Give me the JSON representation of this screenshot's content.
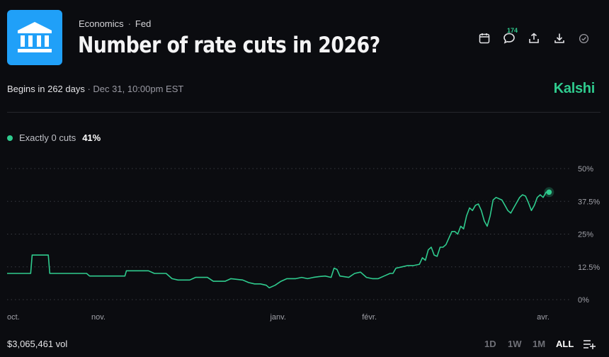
{
  "header": {
    "category": "Economics",
    "subcategory": "Fed",
    "title": "Number of rate cuts in 2026?",
    "comment_count": "174"
  },
  "meta": {
    "begins": "Begins in 262 days",
    "separator": " · ",
    "date": "Dec 31, 10:00pm EST"
  },
  "brand": "Kalshi",
  "legend": {
    "label": "Exactly 0 cuts",
    "value": "41%",
    "color": "#2fcb8e"
  },
  "footer": {
    "volume": "$3,065,461 vol",
    "ranges": [
      "1D",
      "1W",
      "1M",
      "ALL"
    ],
    "active_range": "ALL"
  },
  "colors": {
    "accent": "#2fcb8e",
    "background": "#0b0c10",
    "logo_bg": "#20a0f8"
  },
  "chart_data": {
    "type": "line",
    "title": "Number of rate cuts in 2026?",
    "series_name": "Exactly 0 cuts",
    "xlabel": "",
    "ylabel": "",
    "ylim": [
      0,
      50
    ],
    "y_ticks": [
      "50%",
      "37.5%",
      "25%",
      "12.5%",
      "0%"
    ],
    "y_tick_values": [
      50,
      37.5,
      25,
      12.5,
      0
    ],
    "x_ticks": [
      {
        "label": "oct.",
        "t": 0
      },
      {
        "label": "nov.",
        "t": 31
      },
      {
        "label": "janv.",
        "t": 92
      },
      {
        "label": "févr.",
        "t": 123
      },
      {
        "label": "avr.",
        "t": 182
      }
    ],
    "x_range": [
      0,
      188
    ],
    "points": [
      [
        0,
        10
      ],
      [
        8,
        10
      ],
      [
        8.5,
        17
      ],
      [
        14,
        17
      ],
      [
        14.5,
        10
      ],
      [
        27,
        10
      ],
      [
        28,
        9
      ],
      [
        40,
        9
      ],
      [
        40.5,
        11
      ],
      [
        48,
        11
      ],
      [
        50,
        10
      ],
      [
        54,
        10
      ],
      [
        56,
        8
      ],
      [
        58,
        7.5
      ],
      [
        62,
        7.5
      ],
      [
        64,
        8.5
      ],
      [
        68,
        8.5
      ],
      [
        70,
        7
      ],
      [
        74,
        7
      ],
      [
        76,
        8
      ],
      [
        80,
        7.5
      ],
      [
        82,
        6.5
      ],
      [
        84,
        6
      ],
      [
        86,
        6
      ],
      [
        88,
        5.5
      ],
      [
        89,
        4.5
      ],
      [
        91,
        5.5
      ],
      [
        93,
        7
      ],
      [
        95,
        8
      ],
      [
        98,
        8
      ],
      [
        100,
        8.5
      ],
      [
        102,
        8
      ],
      [
        104,
        8.5
      ],
      [
        106,
        8.8
      ],
      [
        108,
        9
      ],
      [
        110,
        8.5
      ],
      [
        111,
        12
      ],
      [
        112,
        11.5
      ],
      [
        113,
        9
      ],
      [
        116,
        8.5
      ],
      [
        118,
        10
      ],
      [
        120,
        10.5
      ],
      [
        122,
        8.5
      ],
      [
        124,
        8
      ],
      [
        126,
        8
      ],
      [
        128,
        9
      ],
      [
        130,
        10
      ],
      [
        131,
        10
      ],
      [
        132,
        12
      ],
      [
        134,
        12.5
      ],
      [
        136,
        13
      ],
      [
        138,
        13
      ],
      [
        140,
        13.5
      ],
      [
        141,
        16
      ],
      [
        142,
        15
      ],
      [
        143,
        19
      ],
      [
        144,
        20
      ],
      [
        145,
        17
      ],
      [
        146,
        16.5
      ],
      [
        147,
        20
      ],
      [
        148,
        20
      ],
      [
        149,
        21
      ],
      [
        151,
        26
      ],
      [
        152,
        26
      ],
      [
        153,
        25
      ],
      [
        154,
        28
      ],
      [
        155,
        27
      ],
      [
        156,
        32
      ],
      [
        157,
        35
      ],
      [
        158,
        34
      ],
      [
        159,
        36
      ],
      [
        160,
        36.5
      ],
      [
        161,
        34
      ],
      [
        162,
        30
      ],
      [
        163,
        28
      ],
      [
        164,
        32
      ],
      [
        165,
        38
      ],
      [
        166,
        39
      ],
      [
        167,
        38.5
      ],
      [
        168,
        38
      ],
      [
        169,
        36
      ],
      [
        170,
        34
      ],
      [
        171,
        33
      ],
      [
        172,
        35
      ],
      [
        173,
        37
      ],
      [
        174,
        39
      ],
      [
        175,
        40
      ],
      [
        176,
        39.5
      ],
      [
        177,
        37
      ],
      [
        178,
        34
      ],
      [
        179,
        36
      ],
      [
        180,
        39
      ],
      [
        181,
        40
      ],
      [
        182,
        39
      ],
      [
        183,
        41
      ],
      [
        184,
        41
      ]
    ]
  }
}
